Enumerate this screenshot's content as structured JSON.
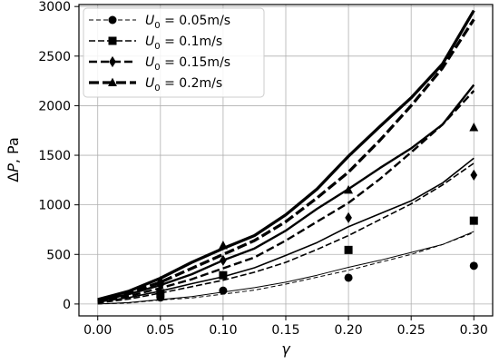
{
  "chart_data": {
    "type": "line",
    "xlabel": "γ",
    "ylabel": "ΔP, Pa",
    "xlim": [
      -0.015,
      0.315
    ],
    "ylim": [
      -120,
      3020
    ],
    "xticks": [
      0.0,
      0.05,
      0.1,
      0.15,
      0.2,
      0.25,
      0.3
    ],
    "xtick_labels": [
      "0.00",
      "0.05",
      "0.10",
      "0.15",
      "0.20",
      "0.25",
      "0.30"
    ],
    "yticks": [
      0,
      500,
      1000,
      1500,
      2000,
      2500,
      3000
    ],
    "ytick_labels": [
      "0",
      "500",
      "1000",
      "1500",
      "2000",
      "2500",
      "3000"
    ],
    "grid": true,
    "legend_position": "top-left",
    "x": [
      0.0,
      0.025,
      0.05,
      0.075,
      0.1,
      0.125,
      0.15,
      0.175,
      0.2,
      0.225,
      0.25,
      0.275,
      0.3
    ],
    "series": [
      {
        "name": "U0 = 0.05m/s",
        "marker": "circle",
        "dashed": [
          0,
          10,
          40,
          60,
          100,
          140,
          200,
          270,
          340,
          420,
          500,
          600,
          720
        ],
        "solid": [
          0,
          15,
          45,
          75,
          120,
          165,
          220,
          290,
          370,
          440,
          520,
          600,
          730
        ],
        "markers": {
          "x": [
            0.05,
            0.1,
            0.2,
            0.3
          ],
          "y": [
            65,
            135,
            265,
            385
          ]
        }
      },
      {
        "name": "U0 = 0.1m/s",
        "marker": "square",
        "dashed": [
          10,
          50,
          110,
          175,
          240,
          320,
          420,
          550,
          690,
          850,
          1010,
          1200,
          1420
        ],
        "solid": [
          20,
          65,
          130,
          205,
          275,
          365,
          490,
          620,
          780,
          910,
          1040,
          1220,
          1470
        ],
        "markers": {
          "x": [
            0.05,
            0.1,
            0.2,
            0.3
          ],
          "y": [
            110,
            290,
            545,
            840
          ]
        }
      },
      {
        "name": "U0 = 0.15m/s",
        "marker": "diamond",
        "dashed": [
          20,
          80,
          160,
          250,
          360,
          470,
          640,
          830,
          1020,
          1260,
          1530,
          1810,
          2150
        ],
        "solid": [
          30,
          100,
          190,
          300,
          440,
          560,
          740,
          960,
          1160,
          1370,
          1570,
          1810,
          2210
        ],
        "markers": {
          "x": [
            0.05,
            0.1,
            0.2,
            0.3
          ],
          "y": [
            190,
            440,
            870,
            1300
          ]
        }
      },
      {
        "name": "U0 = 0.2m/s",
        "marker": "triangle",
        "dashed": [
          30,
          110,
          220,
          360,
          500,
          640,
          830,
          1070,
          1330,
          1650,
          2000,
          2380,
          2870
        ],
        "solid": [
          45,
          130,
          260,
          420,
          560,
          690,
          900,
          1160,
          1490,
          1790,
          2080,
          2420,
          2960
        ],
        "markers": {
          "x": [
            0.05,
            0.1,
            0.2,
            0.3
          ],
          "y": [
            235,
            590,
            1150,
            1780
          ]
        }
      }
    ]
  },
  "legend": {
    "entries": [
      {
        "sym": "U",
        "sub": "0",
        "rest": " = 0.05m/s"
      },
      {
        "sym": "U",
        "sub": "0",
        "rest": " = 0.1m/s"
      },
      {
        "sym": "U",
        "sub": "0",
        "rest": " = 0.15m/s"
      },
      {
        "sym": "U",
        "sub": "0",
        "rest": " = 0.2m/s"
      }
    ]
  },
  "axis_titles": {
    "x_symbol": "γ",
    "y_delta": "Δ",
    "y_symbol": "P",
    "y_rest": ", Pa"
  }
}
